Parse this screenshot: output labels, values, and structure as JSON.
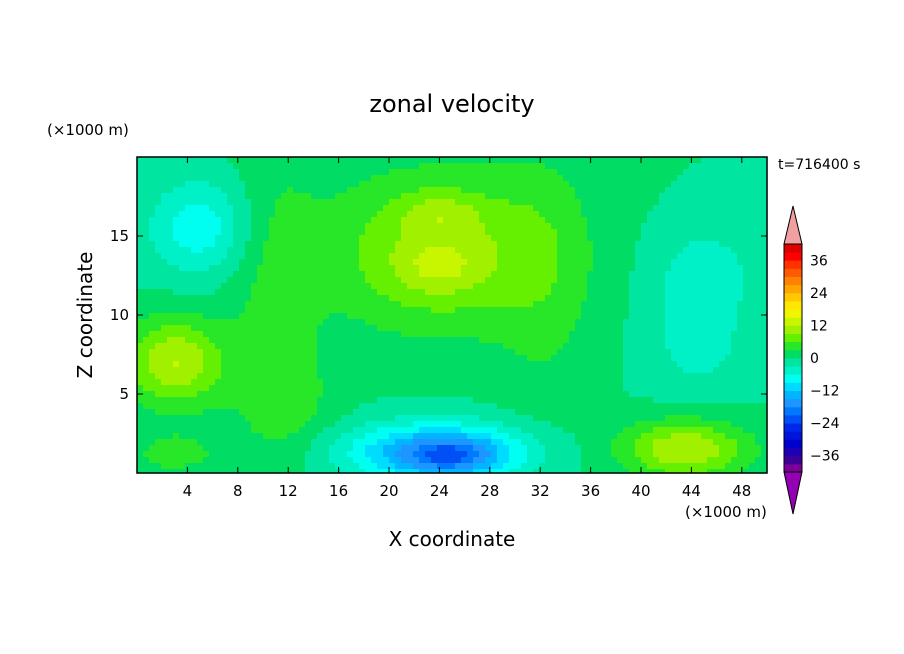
{
  "chart_data": {
    "type": "heatmap",
    "title": "zonal velocity",
    "xlabel": "X coordinate",
    "ylabel": "Z coordinate",
    "x_unit": "(×1000 m)",
    "y_unit": "(×1000 m)",
    "time_label": "t=716400 s",
    "xlim": [
      0,
      50
    ],
    "ylim": [
      0,
      20
    ],
    "x_ticks": [
      4,
      8,
      12,
      16,
      20,
      24,
      28,
      32,
      36,
      40,
      44,
      48
    ],
    "y_ticks": [
      5,
      10,
      15
    ],
    "colorbar": {
      "ticks": [
        36,
        24,
        12,
        0,
        -12,
        -24,
        -36
      ],
      "levels": [
        -42,
        -39,
        -36,
        -33,
        -30,
        -27,
        -24,
        -21,
        -18,
        -15,
        -12,
        -9,
        -6,
        -3,
        0,
        3,
        6,
        9,
        12,
        15,
        18,
        21,
        24,
        27,
        30,
        33,
        36,
        39,
        42
      ],
      "colors": [
        "#7a0099",
        "#3c0096",
        "#1e00b4",
        "#0000cd",
        "#0014dc",
        "#0028eb",
        "#0050f5",
        "#0078ff",
        "#1e96ff",
        "#00b4ff",
        "#00dcff",
        "#00fff0",
        "#00f0c8",
        "#00e6a0",
        "#00dc64",
        "#28e628",
        "#64f000",
        "#a0f000",
        "#c8f500",
        "#f0f500",
        "#ffe600",
        "#ffc800",
        "#ffa500",
        "#ff8200",
        "#ff5a00",
        "#ff3200",
        "#ff0000",
        "#dc0000"
      ],
      "under_color": "#9400b4",
      "over_color": "#f0a0a0"
    },
    "features": [
      {
        "x": 24,
        "z": 14,
        "sx": 9,
        "sz": 5,
        "value": 10
      },
      {
        "x": 24,
        "z": 16.5,
        "sx": 3,
        "sz": 1.2,
        "value": 4
      },
      {
        "x": 24,
        "z": 13,
        "sx": 3,
        "sz": 1.6,
        "value": 4
      },
      {
        "x": 11,
        "z": 11,
        "sx": 3.5,
        "sz": 10,
        "value": 4
      },
      {
        "x": 32.5,
        "z": 12,
        "sx": 4,
        "sz": 10,
        "value": 3
      },
      {
        "x": 5,
        "z": 15.5,
        "sx": 4,
        "sz": 3,
        "value": -8
      },
      {
        "x": 45,
        "z": 12.5,
        "sx": 4,
        "sz": 3,
        "value": -5
      },
      {
        "x": 44.5,
        "z": 8,
        "sx": 4,
        "sz": 3,
        "value": -4
      },
      {
        "x": 3,
        "z": 7,
        "sx": 4,
        "sz": 2.8,
        "value": 12
      },
      {
        "x": 12,
        "z": 4.5,
        "sx": 4,
        "sz": 3,
        "value": 3
      },
      {
        "x": 24,
        "z": 1.3,
        "sx": 7,
        "sz": 1.8,
        "value": -18
      },
      {
        "x": 25,
        "z": 1.0,
        "sx": 3,
        "sz": 0.9,
        "value": -6
      },
      {
        "x": 43.5,
        "z": 1.5,
        "sx": 5,
        "sz": 1.8,
        "value": 12
      },
      {
        "x": 3,
        "z": 1.2,
        "sx": 4,
        "sz": 1.5,
        "value": 4
      }
    ]
  }
}
